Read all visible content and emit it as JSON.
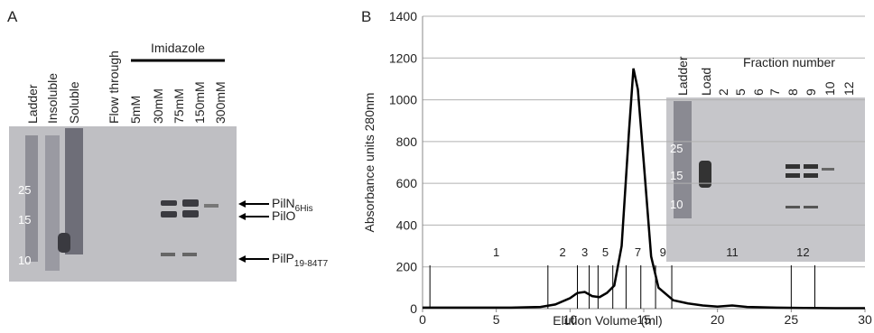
{
  "panel_a": {
    "label": "A",
    "group_label": "Imidazole",
    "lanes": [
      "Ladder",
      "Insoluble",
      "Soluble",
      "Flow through",
      "5mM",
      "30mM",
      "75mM",
      "150mM",
      "300mM"
    ],
    "markers": [
      "25",
      "15",
      "10"
    ],
    "bands": [
      {
        "name": "PilN",
        "subscript": "6His"
      },
      {
        "name": "PilO",
        "subscript": ""
      },
      {
        "name": "PilP",
        "subscript": "19-84T7"
      }
    ]
  },
  "chart_data": {
    "type": "line",
    "label": "B",
    "xlabel": "Elution Volume (ml)",
    "ylabel": "Absorbance units 280nm",
    "xlim": [
      0,
      30
    ],
    "xticks": [
      0,
      5,
      10,
      15,
      20,
      25,
      30
    ],
    "ylim": [
      0,
      1400
    ],
    "yticks": [
      0,
      200,
      400,
      600,
      800,
      1000,
      1200,
      1400
    ],
    "grid": true,
    "x": [
      0,
      2,
      4,
      6,
      8,
      9,
      10,
      10.5,
      11,
      11.5,
      12,
      12.5,
      13,
      13.5,
      14,
      14.3,
      14.6,
      15,
      15.5,
      16,
      17,
      18,
      19,
      20,
      21,
      22,
      24,
      26,
      28,
      30
    ],
    "series": [
      {
        "color": "#000000",
        "values": [
          5,
          5,
          5,
          5,
          8,
          20,
          50,
          75,
          80,
          60,
          55,
          75,
          110,
          300,
          850,
          1150,
          1050,
          700,
          250,
          100,
          40,
          25,
          15,
          10,
          15,
          8,
          5,
          3,
          2,
          2
        ]
      }
    ],
    "fraction_boundaries": [
      0.5,
      8.5,
      10.5,
      11.3,
      11.9,
      12.9,
      13.8,
      14.8,
      15.8,
      16.9,
      25,
      26.6
    ],
    "fraction_labels": [
      {
        "label": "1",
        "x": 5
      },
      {
        "label": "2",
        "x": 9.5
      },
      {
        "label": "3",
        "x": 11
      },
      {
        "label": "5",
        "x": 12.4
      },
      {
        "label": "7",
        "x": 14.6
      },
      {
        "label": "9",
        "x": 16.3
      },
      {
        "label": "11",
        "x": 21
      },
      {
        "label": "12",
        "x": 25.8
      }
    ]
  },
  "inset_gel": {
    "title": "Fraction number",
    "lanes": [
      "Ladder",
      "Load",
      "2",
      "5",
      "6",
      "7",
      "8",
      "9",
      "10",
      "12"
    ],
    "markers": [
      "25",
      "15",
      "10"
    ]
  }
}
